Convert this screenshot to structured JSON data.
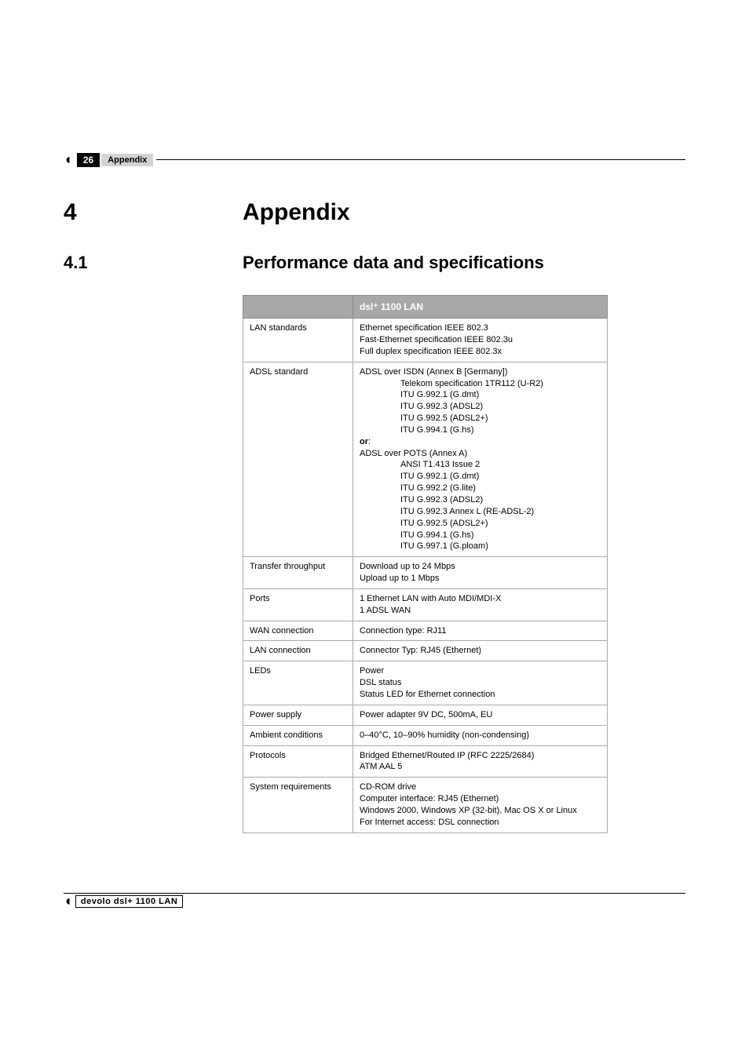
{
  "header": {
    "page_number": "26",
    "label": "Appendix"
  },
  "chapter": {
    "number": "4",
    "title": "Appendix"
  },
  "section": {
    "number": "4.1",
    "title": "Performance data and specifications"
  },
  "table": {
    "product_header": "dsl⁺ 1100 LAN",
    "rows": {
      "lan_standards": {
        "label": "LAN standards",
        "l1": "Ethernet specification IEEE 802.3",
        "l2": "Fast-Ethernet specification IEEE 802.3u",
        "l3": "Full duplex specification IEEE 802.3x"
      },
      "adsl_standard": {
        "label": "ADSL standard",
        "a1": "ADSL over ISDN (Annex B [Germany])",
        "a2": "Telekom specification 1TR112 (U-R2)",
        "a3": "ITU G.992.1 (G.dmt)",
        "a4": "ITU G.992.3 (ADSL2)",
        "a5": "ITU G.992.5 (ADSL2+)",
        "a6": "ITU G.994.1 (G.hs)",
        "or": "or",
        "or_colon": ":",
        "b1": "ADSL over POTS (Annex A)",
        "b2": "ANSI T1.413 Issue 2",
        "b3": "ITU G.992.1 (G.dmt)",
        "b4": "ITU G.992.2 (G.lite)",
        "b5": "ITU G.992.3 (ADSL2)",
        "b6": "ITU G.992.3 Annex L (RE-ADSL-2)",
        "b7": "ITU G.992.5 (ADSL2+)",
        "b8": "ITU G.994.1 (G.hs)",
        "b9": "ITU G.997.1 (G.ploam)"
      },
      "throughput": {
        "label": "Transfer throughput",
        "l1": "Download up to 24 Mbps",
        "l2": "Upload up to 1 Mbps"
      },
      "ports": {
        "label": "Ports",
        "l1": "1 Ethernet LAN with Auto MDI/MDI-X",
        "l2": "1 ADSL WAN"
      },
      "wan": {
        "label": "WAN connection",
        "value": "Connection type: RJ11"
      },
      "lan": {
        "label": "LAN connection",
        "value": "Connector Typ: RJ45 (Ethernet)"
      },
      "leds": {
        "label": "LEDs",
        "l1": "Power",
        "l2": "DSL status",
        "l3": "Status LED for Ethernet connection"
      },
      "power": {
        "label": "Power supply",
        "value": "Power adapter 9V DC, 500mA, EU"
      },
      "ambient": {
        "label": "Ambient conditions",
        "value": "0–40°C, 10–90% humidity (non-condensing)"
      },
      "protocols": {
        "label": "Protocols",
        "l1": "Bridged Ethernet/Routed IP (RFC 2225/2684)",
        "l2": "ATM AAL 5"
      },
      "sysreq": {
        "label": "System requirements",
        "l1": "CD-ROM drive",
        "l2": "Computer interface: RJ45 (Ethernet)",
        "l3": "Windows 2000, Windows XP (32-bit), Mac OS X or Linux",
        "l4": "For Internet access: DSL connection"
      }
    }
  },
  "footer": {
    "text": "devolo dsl+ 1100 LAN"
  }
}
